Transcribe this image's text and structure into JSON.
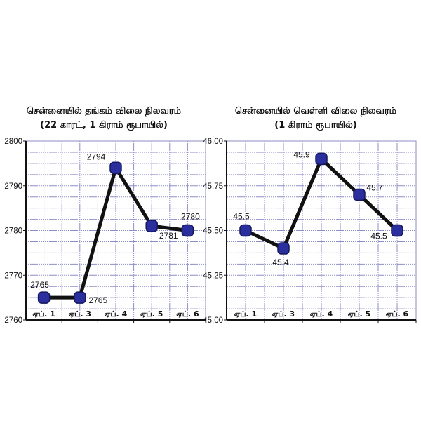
{
  "chart_data": [
    {
      "type": "line",
      "title": "சென்னையில் தங்கம் விலை நிலவரம்",
      "subtitle": "(22 காரட், 1 கிராம் ரூபாயில்)",
      "categories": [
        "ஏப். 1",
        "ஏப். 3",
        "ஏப். 4",
        "ஏப். 5",
        "ஏப். 6"
      ],
      "series": [
        {
          "values": [
            2765,
            2765,
            2794,
            2781,
            2780
          ]
        }
      ],
      "data_labels": [
        "2765",
        "2765",
        "2794",
        "2781",
        "2780"
      ],
      "yticks": [
        "2760",
        "2770",
        "2780",
        "2790",
        "2800"
      ],
      "ylim": [
        2760,
        2800
      ],
      "grid": true,
      "colors": {
        "line": "#111111",
        "marker": "#2b2f9e",
        "grid": "#8e8ec6"
      }
    },
    {
      "type": "line",
      "title": "சென்னையில் வெள்ளி விலை நிலவரம்",
      "subtitle": "(1 கிராம் ரூபாயில்)",
      "categories": [
        "ஏப். 1",
        "ஏப். 3",
        "ஏப். 4",
        "ஏப். 5",
        "ஏப். 6"
      ],
      "series": [
        {
          "values": [
            45.5,
            45.4,
            45.9,
            45.7,
            45.5
          ]
        }
      ],
      "data_labels": [
        "45.5",
        "45.4",
        "45.9",
        "45.7",
        "45.5"
      ],
      "yticks": [
        "45.00",
        "45.25",
        "45.50",
        "45.75",
        "46.00"
      ],
      "ylim": [
        45.0,
        46.0
      ],
      "grid": true,
      "colors": {
        "line": "#111111",
        "marker": "#2b2f9e",
        "grid": "#8e8ec6"
      }
    }
  ]
}
